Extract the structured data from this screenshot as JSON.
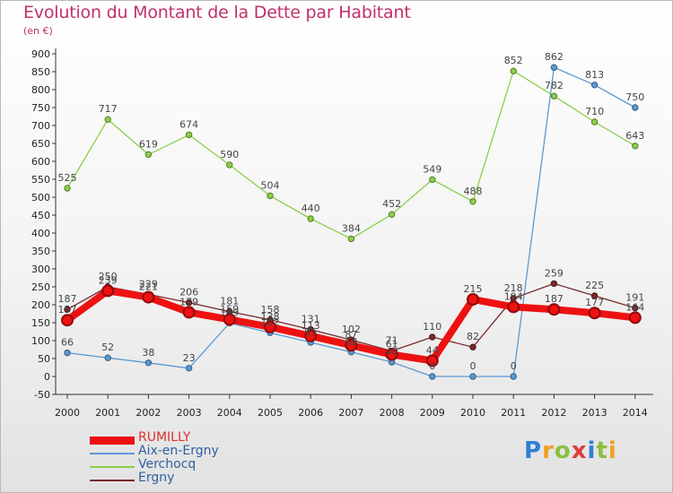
{
  "header": {
    "title": "Evolution du Montant de la Dette par Habitant",
    "unit": "(en €)"
  },
  "logo": {
    "letters": [
      {
        "ch": "P",
        "color": "#2f7fd6"
      },
      {
        "ch": "r",
        "color": "#f0a020"
      },
      {
        "ch": "o",
        "color": "#8cbf3f"
      },
      {
        "ch": "x",
        "color": "#e03a3a"
      },
      {
        "ch": "i",
        "color": "#2f7fd6"
      },
      {
        "ch": "t",
        "color": "#8cbf3f"
      },
      {
        "ch": "i",
        "color": "#f0a020"
      }
    ]
  },
  "chart_data": {
    "type": "line",
    "x": [
      2000,
      2001,
      2002,
      2003,
      2004,
      2005,
      2006,
      2007,
      2008,
      2009,
      2010,
      2011,
      2012,
      2013,
      2014
    ],
    "ylim": [
      -50,
      900
    ],
    "yticks": [
      -50,
      0,
      50,
      100,
      150,
      200,
      250,
      300,
      350,
      400,
      450,
      500,
      550,
      600,
      650,
      700,
      750,
      800,
      850,
      900
    ],
    "grid": false,
    "legend_position": "bottom-left",
    "series": [
      {
        "name": "Verchocq",
        "color": "#8ccf4a",
        "values": [
          525,
          717,
          619,
          674,
          590,
          504,
          440,
          384,
          452,
          549,
          488,
          852,
          782,
          710,
          643
        ]
      },
      {
        "name": "Aix-en-Ergny",
        "color": "#5a9ad2",
        "values": [
          66,
          52,
          38,
          23,
          149,
          122,
          95,
          68,
          40,
          0,
          0,
          0,
          862,
          813,
          750
        ]
      },
      {
        "name": "Ergny",
        "color": "#7a2a2a",
        "values": [
          187,
          250,
          229,
          206,
          181,
          158,
          131,
          102,
          71,
          110,
          82,
          218,
          259,
          225,
          191
        ]
      },
      {
        "name": "RUMILLY",
        "color": "#ee1111",
        "values": [
          157,
          239,
          221,
          179,
          159,
          138,
          113,
          87,
          61,
          44,
          215,
          194,
          187,
          177,
          164
        ]
      }
    ],
    "legend_order": [
      "RUMILLY",
      "Aix-en-Ergny",
      "Verchocq",
      "Ergny"
    ]
  }
}
